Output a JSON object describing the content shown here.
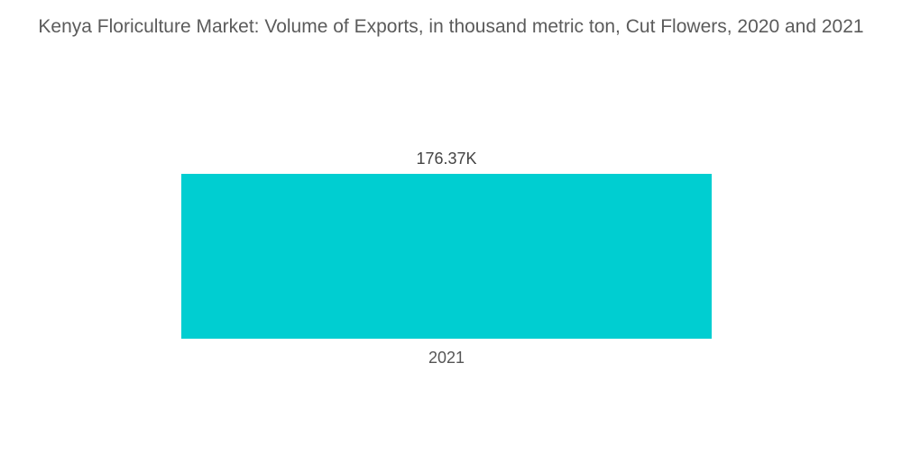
{
  "chart_data": {
    "type": "bar",
    "title": "Kenya Floriculture Market: Volume of Exports, in thousand metric ton, Cut Flowers, 2020 and 2021",
    "categories": [
      "2021"
    ],
    "values": [
      176.37
    ],
    "data_labels": [
      "176.37K"
    ],
    "xlabel": "",
    "ylabel": "",
    "ylim": [
      0,
      176.37
    ],
    "grid": false,
    "legend": "none",
    "colors": {
      "bar": "#00ced1"
    }
  }
}
